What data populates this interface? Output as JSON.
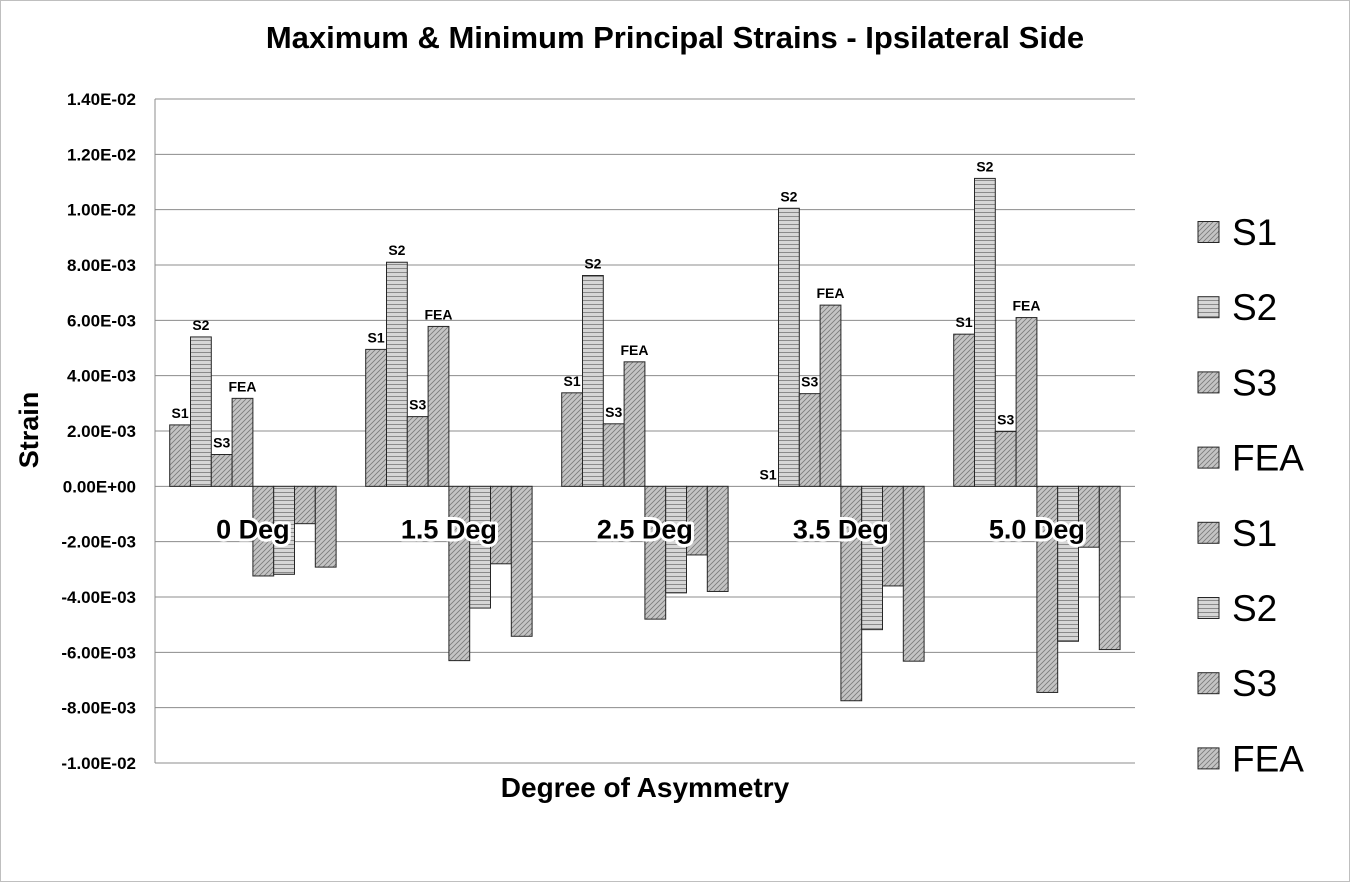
{
  "chart_data": {
    "type": "bar",
    "title": "Maximum & Minimum Principal Strains - Ipsilateral Side",
    "xlabel": "Degree of Asymmetry",
    "ylabel": "Strain",
    "ylim": [
      -0.01,
      0.014
    ],
    "yticks": [
      0.014,
      0.012,
      0.01,
      0.008,
      0.006,
      0.004,
      0.002,
      0,
      -0.002,
      -0.004,
      -0.006,
      -0.008,
      -0.01
    ],
    "ytick_labels": [
      "1.40E-02",
      "1.20E-02",
      "1.00E-02",
      "8.00E-03",
      "6.00E-03",
      "4.00E-03",
      "2.00E-03",
      "0.00E+00",
      "-2.00E-03",
      "-4.00E-03",
      "-6.00E-03",
      "-8.00E-03",
      "-1.00E-02"
    ],
    "grid": true,
    "legend_position": "right",
    "categories": [
      "0 Deg",
      "1.5 Deg",
      "2.5 Deg",
      "3.5 Deg",
      "5.0 Deg"
    ],
    "series": [
      {
        "name": "S1",
        "group": "maximum",
        "pattern": "diagonal",
        "values": [
          0.00222,
          0.00495,
          0.00338,
          0,
          0.0055
        ]
      },
      {
        "name": "S2",
        "group": "maximum",
        "pattern": "horizontal",
        "values": [
          0.0054,
          0.0081,
          0.00762,
          0.01005,
          0.01113
        ]
      },
      {
        "name": "S3",
        "group": "maximum",
        "pattern": "diagonal",
        "values": [
          0.00115,
          0.00252,
          0.00226,
          0.00335,
          0.00198
        ]
      },
      {
        "name": "FEA",
        "group": "maximum",
        "pattern": "diagonal",
        "values": [
          0.00318,
          0.00578,
          0.0045,
          0.00655,
          0.0061
        ]
      },
      {
        "name": "S1",
        "group": "minimum",
        "pattern": "diagonal",
        "values": [
          -0.00324,
          -0.0063,
          -0.0048,
          -0.00775,
          -0.00745
        ]
      },
      {
        "name": "S2",
        "group": "minimum",
        "pattern": "horizontal",
        "values": [
          -0.00318,
          -0.0044,
          -0.00385,
          -0.00518,
          -0.0056
        ]
      },
      {
        "name": "S3",
        "group": "minimum",
        "pattern": "diagonal",
        "values": [
          -0.00135,
          -0.0028,
          -0.00248,
          -0.0036,
          -0.0022
        ]
      },
      {
        "name": "FEA",
        "group": "minimum",
        "pattern": "diagonal",
        "values": [
          -0.00292,
          -0.00542,
          -0.0038,
          -0.00632,
          -0.0059
        ]
      }
    ],
    "bar_labels": [
      "S1",
      "S2",
      "S3",
      "FEA"
    ],
    "legend": [
      "S1",
      "S2",
      "S3",
      "FEA",
      "S1",
      "S2",
      "S3",
      "FEA"
    ],
    "colors": {
      "bar_fill": "#bfbfbf",
      "bar_stroke": "#262626",
      "grid": "#8c8c8c",
      "text": "#000000",
      "border": "#bfbfbf"
    }
  }
}
